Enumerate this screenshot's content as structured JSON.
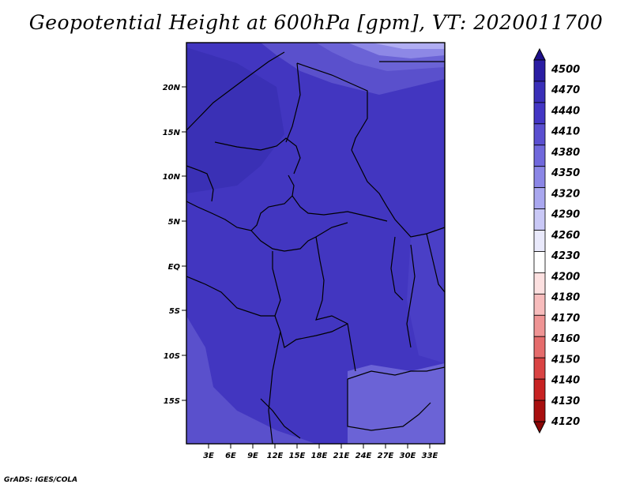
{
  "title": "Geopotential Height at 600hPa [gpm], VT: 2020011700",
  "credit": "GrADS: IGES/COLA",
  "map": {
    "lat_labels": [
      "20N",
      "15N",
      "10N",
      "5N",
      "EQ",
      "5S",
      "10S",
      "15S"
    ],
    "lon_labels": [
      "3E",
      "6E",
      "9E",
      "12E",
      "15E",
      "18E",
      "21E",
      "24E",
      "27E",
      "30E",
      "33E"
    ]
  },
  "colorbar": {
    "levels": [
      "4500",
      "4470",
      "4440",
      "4410",
      "4380",
      "4350",
      "4320",
      "4290",
      "4260",
      "4230",
      "4200",
      "4180",
      "4170",
      "4160",
      "4150",
      "4140",
      "4130",
      "4120"
    ],
    "colors": [
      "#1e0f8a",
      "#2a1da3",
      "#3a2fb8",
      "#4336c4",
      "#5a4fd0",
      "#7068dc",
      "#8b86e6",
      "#a9a7ef",
      "#c9c8f6",
      "#e9e9fb",
      "#ffffff",
      "#fce0e0",
      "#f7bcbc",
      "#ef9494",
      "#e56c6c",
      "#d94343",
      "#c72222",
      "#a80f0f",
      "#8a0606"
    ]
  },
  "field_colors": {
    "high": "#3a30b5",
    "mid": "#4236c0",
    "low": "#5a50cc",
    "lower": "#6b63d6",
    "lowest": "#8d88e6",
    "top": "#b0adf2"
  }
}
